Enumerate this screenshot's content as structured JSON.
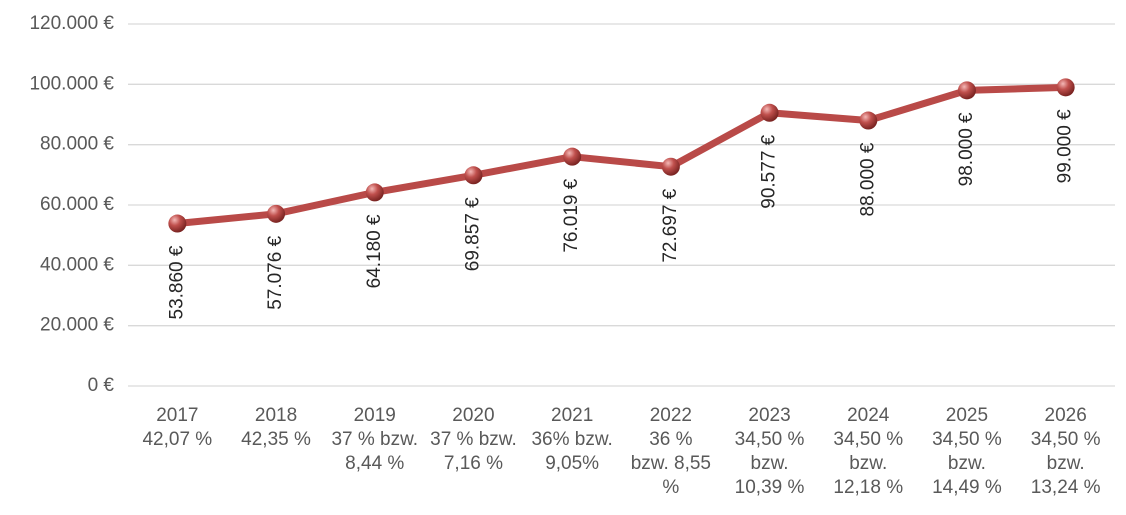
{
  "chart_data": {
    "type": "line",
    "categories": [
      [
        "2017",
        "42,07 %"
      ],
      [
        "2018",
        "42,35 %"
      ],
      [
        "2019",
        "37 % bzw.",
        "8,44 %"
      ],
      [
        "2020",
        "37 % bzw.",
        "7,16 %"
      ],
      [
        "2021",
        "36%  bzw.",
        "9,05%"
      ],
      [
        "2022",
        "36 %",
        "bzw. 8,55",
        "%"
      ],
      [
        "2023",
        "34,50 %",
        "bzw.",
        "10,39 %"
      ],
      [
        "2024",
        "34,50 %",
        "bzw.",
        "12,18 %"
      ],
      [
        "2025",
        "34,50 %",
        "bzw.",
        "14,49 %"
      ],
      [
        "2026",
        "34,50 %",
        "bzw.",
        "13,24 %"
      ]
    ],
    "series": [
      {
        "color": "#b94a48",
        "values": [
          53860,
          57076,
          64180,
          69857,
          76019,
          72697,
          90577,
          88000,
          98000,
          99000
        ],
        "value_labels": [
          "53.860 €",
          "57.076 €",
          "64.180 €",
          "69.857 €",
          "76.019 €",
          "72.697 €",
          "90.577 €",
          "88.000 €",
          "98.000 €",
          "99.000 €"
        ]
      }
    ],
    "ylim": [
      0,
      120000
    ],
    "yticks": [
      {
        "value": 0,
        "label": "0 €"
      },
      {
        "value": 20000,
        "label": "20.000 €"
      },
      {
        "value": 40000,
        "label": "40.000 €"
      },
      {
        "value": 60000,
        "label": "60.000 €"
      },
      {
        "value": 80000,
        "label": "80.000 €"
      },
      {
        "value": 100000,
        "label": "100.000 €"
      },
      {
        "value": 120000,
        "label": "120.000 €"
      }
    ],
    "grid": true
  }
}
